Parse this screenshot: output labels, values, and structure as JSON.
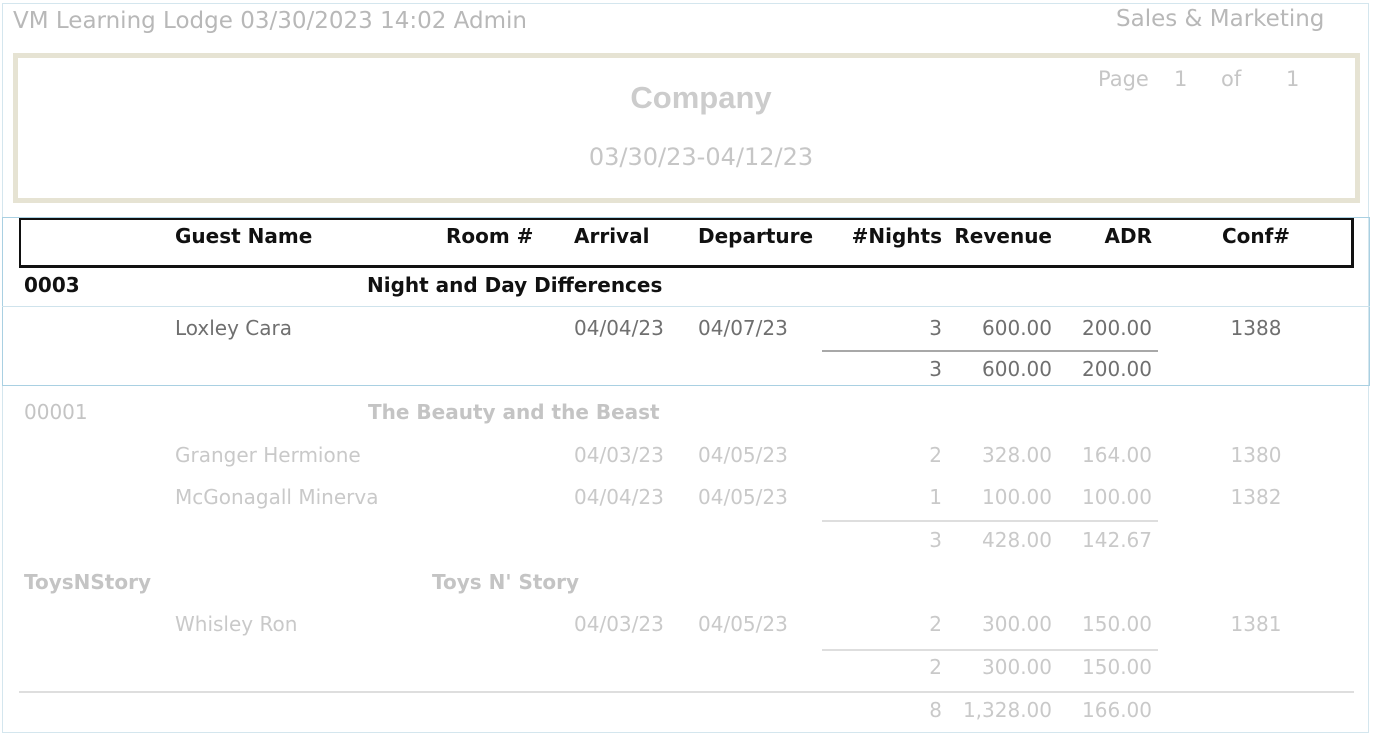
{
  "page_header": {
    "left": "VM Learning Lodge 03/30/2023 14:02  Admin",
    "right": "Sales & Marketing"
  },
  "report": {
    "title": "Company",
    "date_range": "03/30/23-04/12/23",
    "page_label": "Page",
    "page_num": "1",
    "of_label": "of",
    "page_total": "1"
  },
  "columns": {
    "guest": "Guest Name",
    "room": "Room #",
    "arrival": "Arrival",
    "departure": "Departure",
    "nights": "#Nights",
    "revenue": "Revenue",
    "adr": "ADR",
    "conf": "Conf#"
  },
  "groups": [
    {
      "code": "0003",
      "name": "Night and Day Differences",
      "rows": [
        {
          "guest": "Loxley Cara",
          "arrival": "04/04/23",
          "departure": "04/07/23",
          "nights": "3",
          "revenue": "600.00",
          "adr": "200.00",
          "conf": "1388"
        }
      ],
      "subtotal": {
        "nights": "3",
        "revenue": "600.00",
        "adr": "200.00"
      }
    },
    {
      "code": "00001",
      "name": "The Beauty and the Beast",
      "rows": [
        {
          "guest": "Granger Hermione",
          "arrival": "04/03/23",
          "departure": "04/05/23",
          "nights": "2",
          "revenue": "328.00",
          "adr": "164.00",
          "conf": "1380"
        },
        {
          "guest": "McGonagall Minerva",
          "arrival": "04/04/23",
          "departure": "04/05/23",
          "nights": "1",
          "revenue": "100.00",
          "adr": "100.00",
          "conf": "1382"
        }
      ],
      "subtotal": {
        "nights": "3",
        "revenue": "428.00",
        "adr": "142.67"
      }
    },
    {
      "code": "ToysNStory",
      "name": "Toys N' Story",
      "rows": [
        {
          "guest": "Whisley Ron",
          "arrival": "04/03/23",
          "departure": "04/05/23",
          "nights": "2",
          "revenue": "300.00",
          "adr": "150.00",
          "conf": "1381"
        }
      ],
      "subtotal": {
        "nights": "2",
        "revenue": "300.00",
        "adr": "150.00"
      }
    }
  ],
  "grand_total": {
    "nights": "8",
    "revenue": "1,328.00",
    "adr": "166.00"
  }
}
